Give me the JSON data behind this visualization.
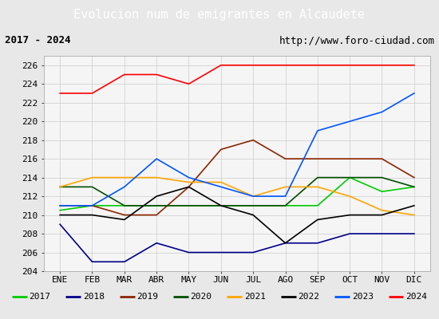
{
  "title": "Evolucion num de emigrantes en Alcaudete",
  "subtitle_left": "2017 - 2024",
  "subtitle_right": "http://www.foro-ciudad.com",
  "ylim": [
    204,
    227
  ],
  "yticks": [
    204,
    206,
    208,
    210,
    212,
    214,
    216,
    218,
    220,
    222,
    224,
    226
  ],
  "months": [
    "ENE",
    "FEB",
    "MAR",
    "ABR",
    "MAY",
    "JUN",
    "JUL",
    "AGO",
    "SEP",
    "OCT",
    "NOV",
    "DIC"
  ],
  "series": {
    "2017": {
      "color": "#00cc00",
      "data": [
        210.5,
        211.0,
        211.0,
        211.0,
        211.0,
        211.0,
        211.0,
        211.0,
        211.0,
        214.0,
        212.5,
        213.0
      ]
    },
    "2018": {
      "color": "#00008b",
      "data": [
        209.0,
        205.0,
        205.0,
        207.0,
        206.0,
        206.0,
        206.0,
        207.0,
        207.0,
        208.0,
        208.0,
        208.0
      ]
    },
    "2019": {
      "color": "#8b2500",
      "data": [
        211.0,
        211.0,
        210.0,
        210.0,
        213.0,
        217.0,
        218.0,
        216.0,
        216.0,
        216.0,
        216.0,
        214.0
      ]
    },
    "2020": {
      "color": "#005000",
      "data": [
        213.0,
        213.0,
        211.0,
        211.0,
        211.0,
        211.0,
        211.0,
        211.0,
        214.0,
        214.0,
        214.0,
        213.0
      ]
    },
    "2021": {
      "color": "#ffa500",
      "data": [
        213.0,
        214.0,
        214.0,
        214.0,
        213.5,
        213.5,
        212.0,
        213.0,
        213.0,
        212.0,
        210.5,
        210.0
      ]
    },
    "2022": {
      "color": "#000000",
      "data": [
        210.0,
        210.0,
        209.5,
        212.0,
        213.0,
        211.0,
        210.0,
        207.0,
        209.5,
        210.0,
        210.0,
        211.0
      ]
    },
    "2023": {
      "color": "#0055ff",
      "data": [
        211.0,
        211.0,
        213.0,
        216.0,
        214.0,
        213.0,
        212.0,
        212.0,
        219.0,
        220.0,
        221.0,
        223.0
      ]
    },
    "2024": {
      "color": "#ff0000",
      "data": [
        223.0,
        223.0,
        225.0,
        225.0,
        224.0,
        226.0,
        226.0,
        226.0,
        226.0,
        226.0,
        226.0,
        226.0
      ]
    }
  },
  "background_color": "#e8e8e8",
  "plot_background": "#f5f5f5",
  "title_bg": "#5588cc",
  "title_color": "#ffffff",
  "title_fontsize": 11,
  "legend_fontsize": 8,
  "tick_fontsize": 8,
  "subtitle_box_color": "#ffffff"
}
